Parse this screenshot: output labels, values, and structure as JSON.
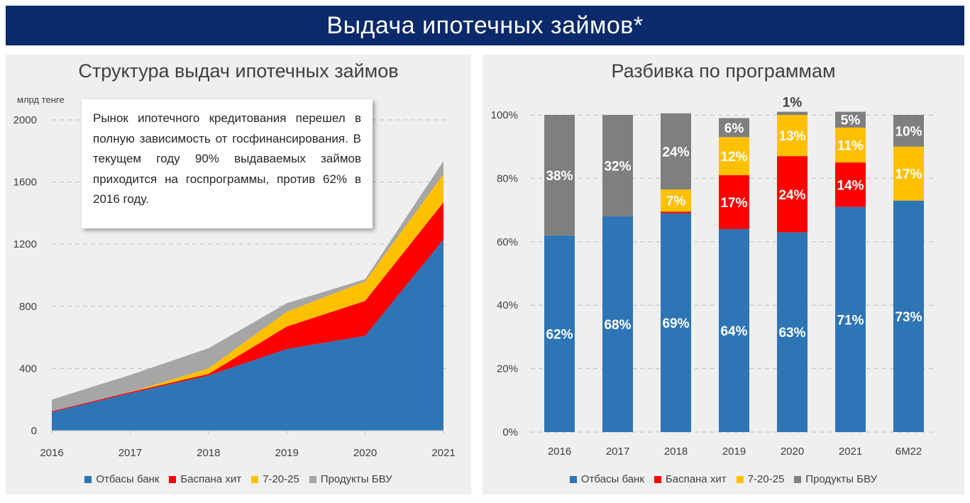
{
  "page_title": "Выдача ипотечных займов*",
  "colors": {
    "otbasy": "#2e75b6",
    "baspana": "#ff0000",
    "program_7_20_25": "#ffc000",
    "bvu": "#a6a6a6",
    "bvu_bar": "#7f7f7f",
    "banner": "#0b2a6b"
  },
  "left": {
    "title": "Структура выдач ипотечных займов",
    "unit": "млрд тенге",
    "callout": "Рынок ипотечного кредитования перешел в полную зависимость от госфинансирования. В текущем году 90% выдаваемых займов приходится на госпрограммы, против 62% в 2016 году.",
    "legend": [
      {
        "label": "Отбасы банк",
        "color": "#2e75b6"
      },
      {
        "label": "Баспана хит",
        "color": "#ff0000"
      },
      {
        "label": "7-20-25",
        "color": "#ffc000"
      },
      {
        "label": "Продукты БВУ",
        "color": "#a6a6a6"
      }
    ]
  },
  "right": {
    "title": "Разбивка по программам",
    "legend": [
      {
        "label": "Отбасы банк",
        "color": "#2e75b6"
      },
      {
        "label": "Баспана хит",
        "color": "#ff0000"
      },
      {
        "label": "7-20-25",
        "color": "#ffc000"
      },
      {
        "label": "Продукты БВУ",
        "color": "#7f7f7f"
      }
    ]
  },
  "chart_data": [
    {
      "type": "area",
      "stacked": true,
      "title": "Структура выдач ипотечных займов",
      "ylabel": "млрд тенге",
      "ylim": [
        0,
        2000
      ],
      "yticks": [
        0,
        400,
        800,
        1200,
        1600,
        2000
      ],
      "x": [
        "2016",
        "2017",
        "2018",
        "2019",
        "2020",
        "2021"
      ],
      "series": [
        {
          "name": "Отбасы банк",
          "values": [
            120,
            240,
            355,
            525,
            610,
            1230
          ]
        },
        {
          "name": "Баспана хит",
          "values": [
            5,
            8,
            10,
            145,
            225,
            240
          ]
        },
        {
          "name": "7-20-25",
          "values": [
            0,
            0,
            35,
            95,
            125,
            180
          ]
        },
        {
          "name": "Продукты БВУ",
          "values": [
            75,
            110,
            130,
            55,
            15,
            85
          ]
        }
      ],
      "grid": true,
      "legend_position": "bottom"
    },
    {
      "type": "bar",
      "stacked": true,
      "percent": true,
      "title": "Разбивка по программам",
      "ylim": [
        0,
        100
      ],
      "yticks": [
        "0%",
        "20%",
        "40%",
        "60%",
        "80%",
        "100%"
      ],
      "categories": [
        "2016",
        "2017",
        "2018",
        "2019",
        "2020",
        "2021",
        "6M22"
      ],
      "series": [
        {
          "name": "Отбасы банк",
          "values": [
            62,
            68,
            69,
            64,
            63,
            71,
            73
          ],
          "labels": [
            "62%",
            "68%",
            "69%",
            "64%",
            "63%",
            "71%",
            "73%"
          ]
        },
        {
          "name": "Баспана хит",
          "values": [
            0,
            0,
            0.5,
            17,
            24,
            14,
            0
          ],
          "labels": [
            "",
            "",
            "",
            "17%",
            "24%",
            "14%",
            ""
          ]
        },
        {
          "name": "7-20-25",
          "values": [
            0,
            0,
            7,
            12,
            13,
            11,
            17
          ],
          "labels": [
            "",
            "",
            "7%",
            "12%",
            "13%",
            "11%",
            "17%"
          ]
        },
        {
          "name": "Продукты БВУ",
          "values": [
            38,
            32,
            24,
            6,
            1,
            5,
            10
          ],
          "labels": [
            "38%",
            "32%",
            "24%",
            "6%",
            "1%",
            "5%",
            "10%"
          ]
        }
      ],
      "grid": true,
      "legend_position": "bottom"
    }
  ]
}
